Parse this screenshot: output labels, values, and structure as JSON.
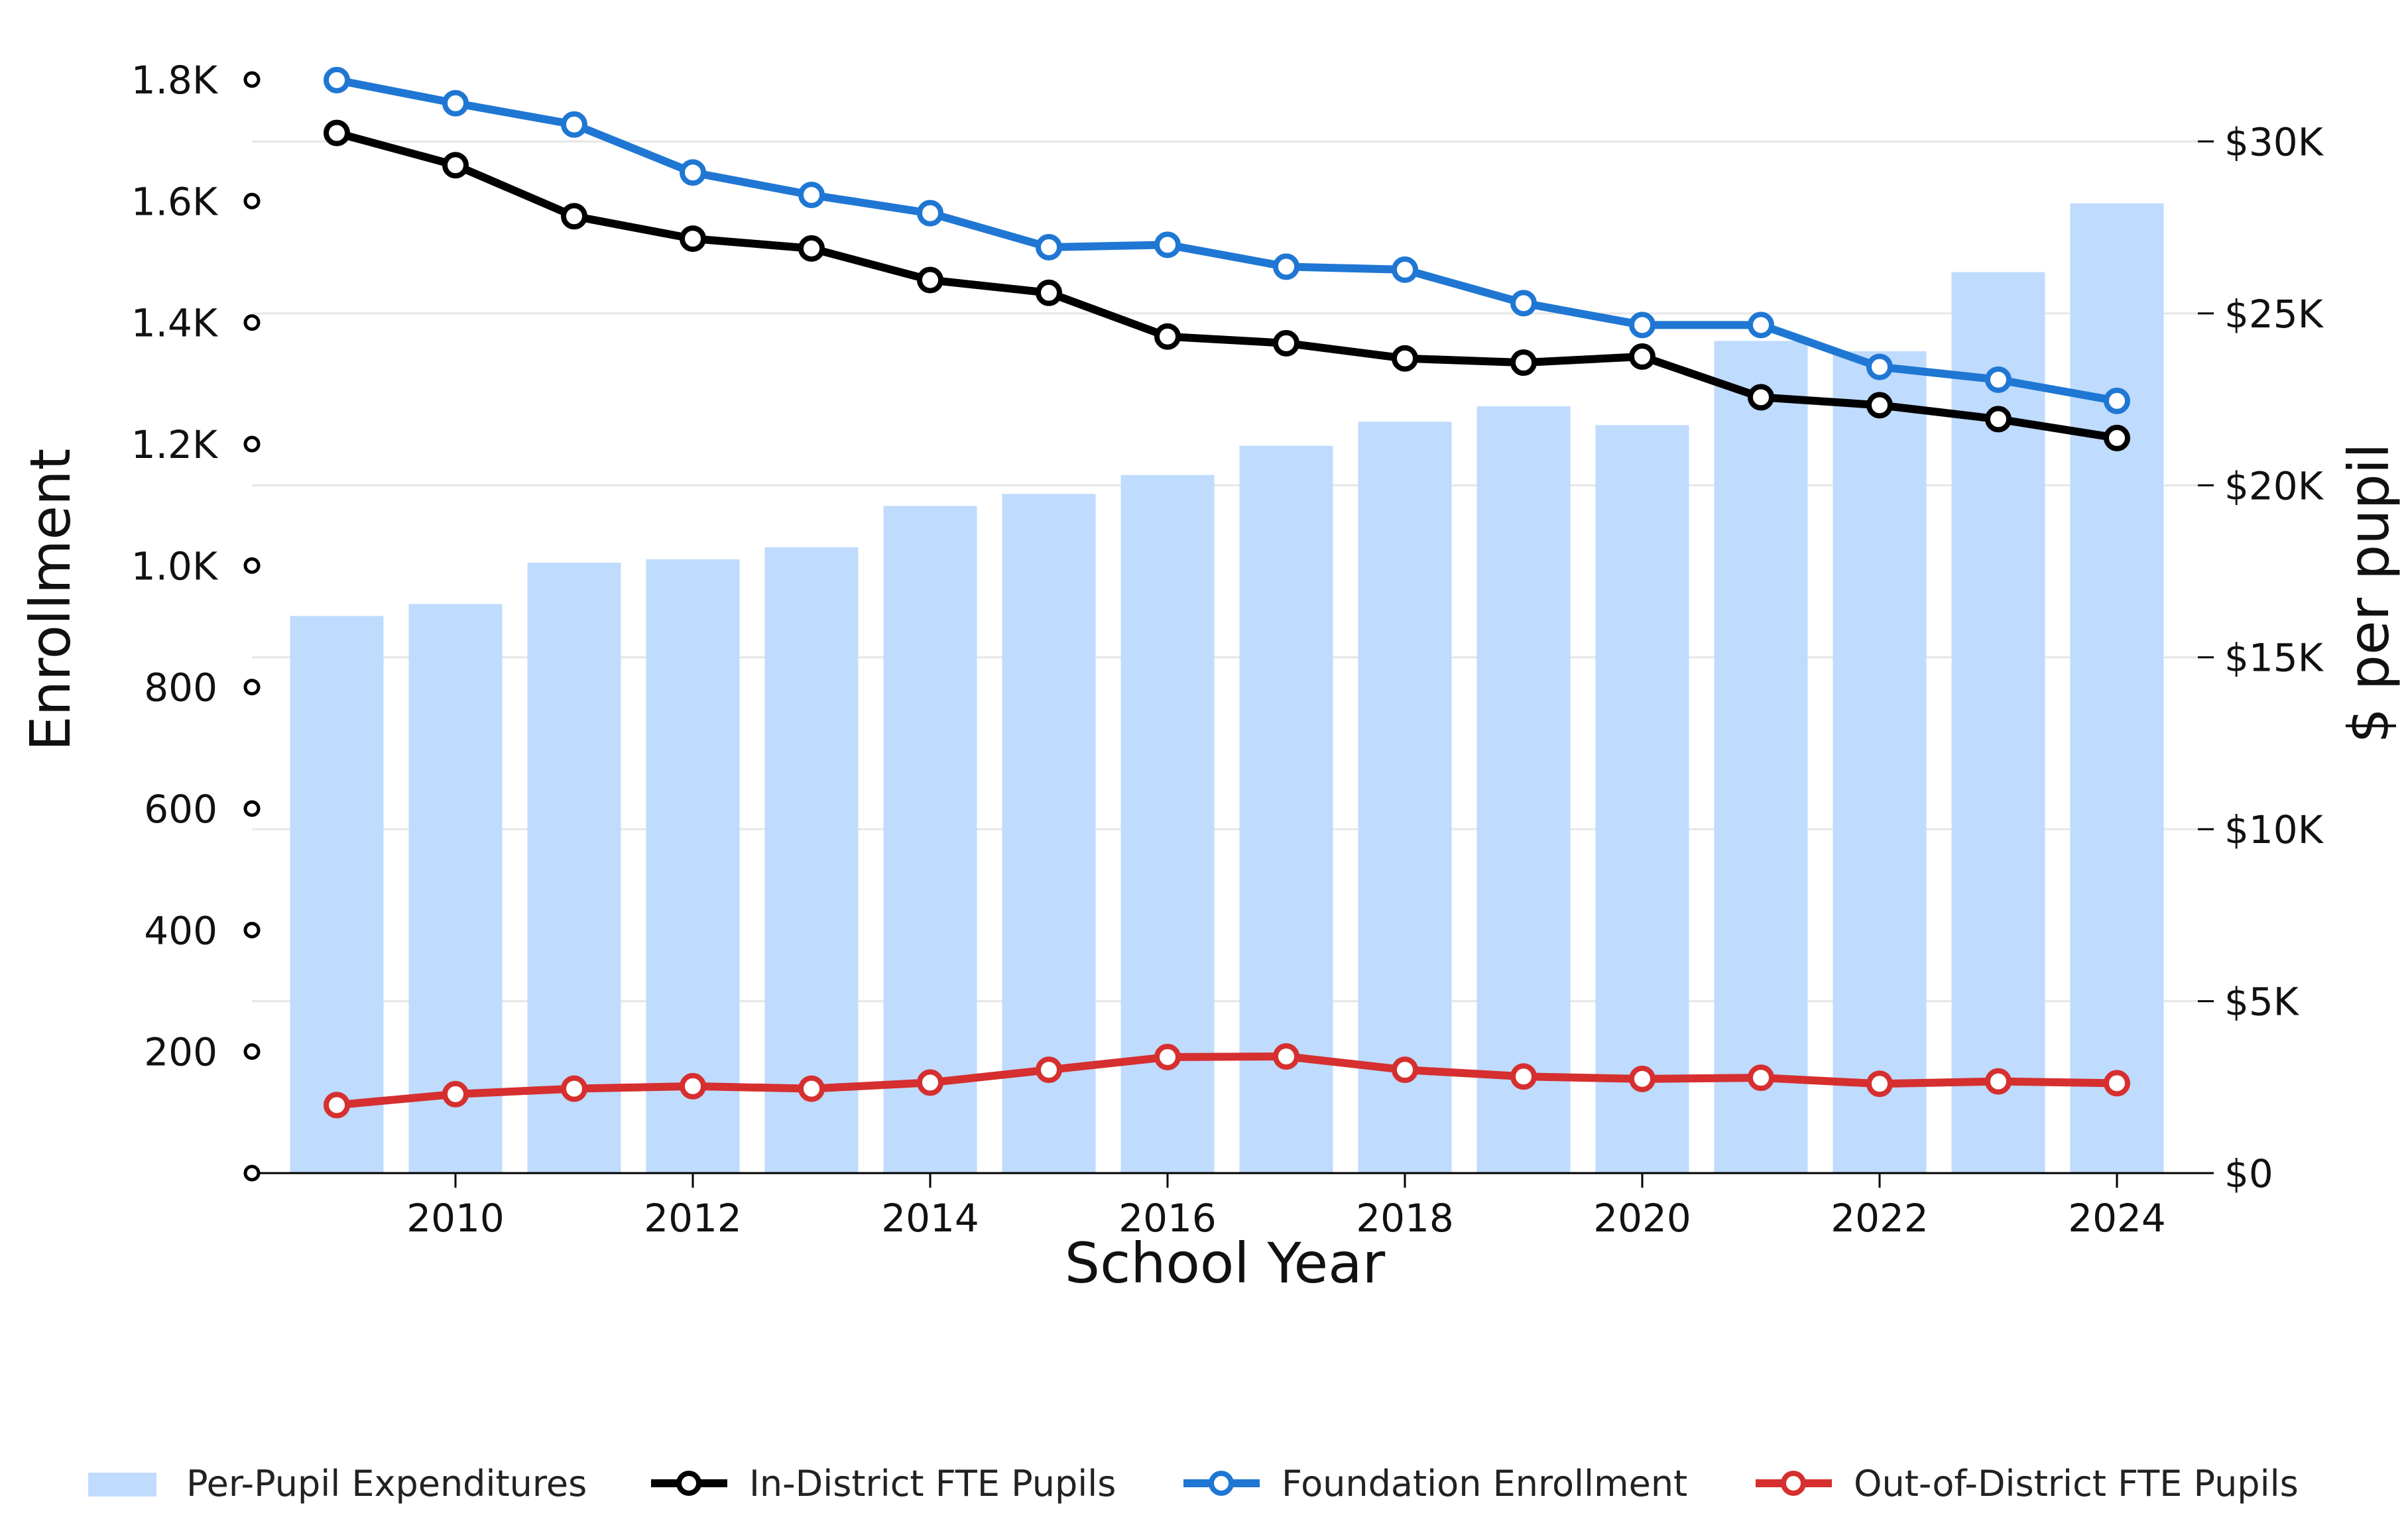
{
  "chart_data": {
    "type": "bar+line",
    "x_label": "School Year",
    "y_left_label": "Enrollment",
    "y_right_label": "$ per pupil",
    "x": [
      2009,
      2010,
      2011,
      2012,
      2013,
      2014,
      2015,
      2016,
      2017,
      2018,
      2019,
      2020,
      2021,
      2022,
      2023,
      2024
    ],
    "x_ticks": [
      2010,
      2012,
      2014,
      2016,
      2018,
      2020,
      2022,
      2024
    ],
    "y_left_ticks": [
      {
        "value": 0,
        "label": ""
      },
      {
        "value": 200,
        "label": "200"
      },
      {
        "value": 400,
        "label": "400"
      },
      {
        "value": 600,
        "label": "600"
      },
      {
        "value": 800,
        "label": "800"
      },
      {
        "value": 1000,
        "label": "1.0K"
      },
      {
        "value": 1200,
        "label": "1.2K"
      },
      {
        "value": 1400,
        "label": "1.4K"
      },
      {
        "value": 1600,
        "label": "1.6K"
      },
      {
        "value": 1800,
        "label": "1.8K"
      }
    ],
    "y_right_ticks": [
      {
        "value": 0,
        "label": "$0"
      },
      {
        "value": 5000,
        "label": "$5K"
      },
      {
        "value": 10000,
        "label": "$10K"
      },
      {
        "value": 15000,
        "label": "$15K"
      },
      {
        "value": 20000,
        "label": "$20K"
      },
      {
        "value": 25000,
        "label": "$25K"
      },
      {
        "value": 30000,
        "label": "$30K"
      }
    ],
    "y_left_range": [
      0,
      1800
    ],
    "y_right_range": [
      0,
      31800
    ],
    "grid": "horizontal",
    "legend_position": "bottom",
    "bars": {
      "name": "Per-Pupil Expenditures",
      "axis": "right",
      "color": "#bfdbfd",
      "values": [
        16200,
        16550,
        17750,
        17850,
        18200,
        19400,
        19750,
        20300,
        21150,
        21850,
        22300,
        21750,
        24200,
        23900,
        26200,
        28200
      ]
    },
    "series": [
      {
        "name": "In-District FTE Pupils",
        "axis": "left",
        "color": "#000000",
        "values": [
          1712,
          1659,
          1575,
          1538,
          1522,
          1470,
          1449,
          1377,
          1366,
          1341,
          1334,
          1344,
          1277,
          1264,
          1241,
          1210
        ]
      },
      {
        "name": "Foundation Enrollment",
        "axis": "left",
        "color": "#1f77d3",
        "values": [
          1799,
          1761,
          1726,
          1647,
          1610,
          1580,
          1524,
          1528,
          1492,
          1487,
          1432,
          1396,
          1396,
          1327,
          1306,
          1271
        ]
      },
      {
        "name": "Out-of-District FTE Pupils",
        "axis": "left",
        "color": "#d62f2f",
        "values": [
          112,
          130,
          139,
          143,
          139,
          149,
          170,
          191,
          192,
          170,
          159,
          155,
          157,
          147,
          151,
          148
        ]
      }
    ]
  }
}
